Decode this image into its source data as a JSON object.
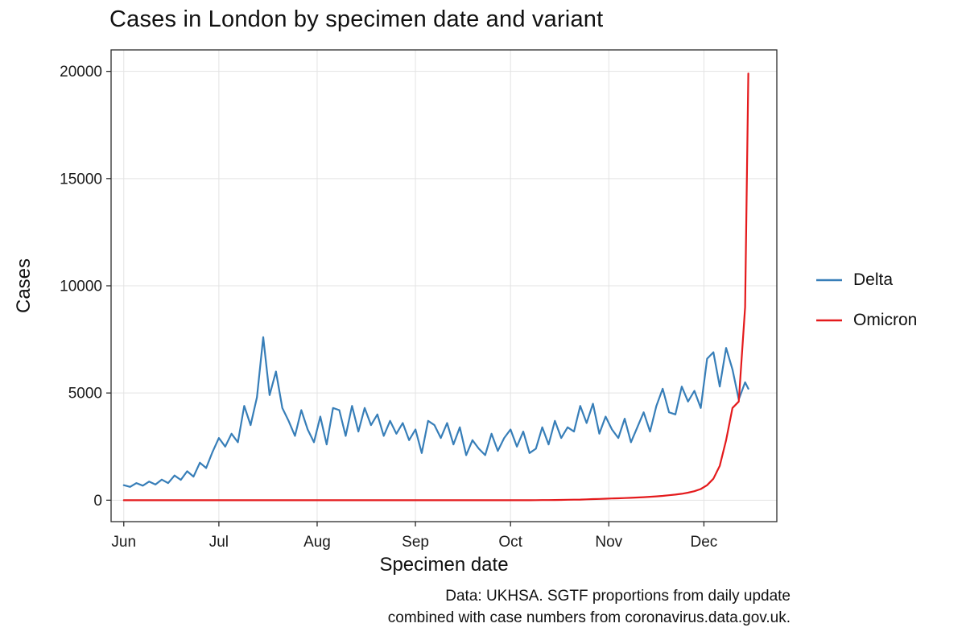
{
  "figure": {
    "caption_line1": "Data: UKHSA. SGTF proportions from daily update",
    "caption_line2": "combined with case numbers from coronavirus.data.gov.uk."
  },
  "chart_data": {
    "type": "line",
    "title": "Cases in London by specimen date and variant",
    "xlabel": "Specimen date",
    "ylabel": "Cases",
    "x_unit": "days since Jun 1",
    "xlim": [
      -4,
      206
    ],
    "ylim": [
      0,
      20000
    ],
    "y_ticks": [
      0,
      5000,
      10000,
      15000,
      20000
    ],
    "y_tick_labels": [
      "0",
      "5000",
      "10000",
      "15000",
      "20000"
    ],
    "x_tick_days": [
      0,
      30,
      61,
      92,
      122,
      153,
      183
    ],
    "x_tick_labels": [
      "Jun",
      "Jul",
      "Aug",
      "Sep",
      "Oct",
      "Nov",
      "Dec"
    ],
    "grid": true,
    "grid_color": "#e3e3e3",
    "panel_border_color": "#2b2b2b",
    "legend_position": "right",
    "days": [
      0,
      2,
      4,
      6,
      8,
      10,
      12,
      14,
      16,
      18,
      20,
      22,
      24,
      26,
      28,
      30,
      32,
      34,
      36,
      38,
      40,
      42,
      44,
      46,
      48,
      50,
      52,
      54,
      56,
      58,
      60,
      62,
      64,
      66,
      68,
      70,
      72,
      74,
      76,
      78,
      80,
      82,
      84,
      86,
      88,
      90,
      92,
      94,
      96,
      98,
      100,
      102,
      104,
      106,
      108,
      110,
      112,
      114,
      116,
      118,
      120,
      122,
      124,
      126,
      128,
      130,
      132,
      134,
      136,
      138,
      140,
      142,
      144,
      146,
      148,
      150,
      152,
      154,
      156,
      158,
      160,
      162,
      164,
      166,
      168,
      170,
      172,
      174,
      176,
      178,
      180,
      182,
      184,
      186,
      188,
      190,
      192,
      194,
      196,
      197
    ],
    "series": [
      {
        "name": "Delta",
        "color": "#377eb8",
        "values": [
          700,
          620,
          800,
          680,
          870,
          730,
          960,
          800,
          1150,
          950,
          1350,
          1100,
          1750,
          1500,
          2250,
          2900,
          2500,
          3100,
          2700,
          4400,
          3500,
          4800,
          7600,
          4900,
          6000,
          4300,
          3700,
          3000,
          4200,
          3300,
          2700,
          3900,
          2600,
          4300,
          4200,
          3000,
          4400,
          3200,
          4300,
          3500,
          4000,
          3000,
          3700,
          3100,
          3600,
          2800,
          3300,
          2200,
          3700,
          3500,
          2900,
          3600,
          2600,
          3400,
          2100,
          2800,
          2400,
          2100,
          3100,
          2300,
          2900,
          3300,
          2500,
          3200,
          2200,
          2400,
          3400,
          2600,
          3700,
          2900,
          3400,
          3200,
          4400,
          3600,
          4500,
          3100,
          3900,
          3300,
          2900,
          3800,
          2700,
          3400,
          4100,
          3200,
          4400,
          5200,
          4100,
          4000,
          5300,
          4600,
          5100,
          4300,
          6600,
          6900,
          5300,
          7100,
          6100,
          4700,
          5500,
          5200
        ]
      },
      {
        "name": "Omicron",
        "color": "#e41a1c",
        "values": [
          0,
          0,
          0,
          0,
          0,
          0,
          0,
          0,
          0,
          0,
          0,
          0,
          0,
          0,
          0,
          0,
          0,
          0,
          0,
          0,
          0,
          0,
          0,
          0,
          0,
          0,
          0,
          0,
          0,
          0,
          0,
          0,
          0,
          0,
          0,
          0,
          0,
          0,
          0,
          0,
          0,
          0,
          0,
          0,
          0,
          0,
          0,
          0,
          0,
          0,
          0,
          0,
          0,
          0,
          0,
          0,
          0,
          0,
          0,
          0,
          0,
          0,
          0,
          0,
          0,
          3,
          5,
          8,
          10,
          15,
          20,
          25,
          30,
          40,
          50,
          60,
          70,
          80,
          90,
          100,
          110,
          125,
          140,
          160,
          180,
          200,
          230,
          260,
          300,
          350,
          420,
          520,
          700,
          1000,
          1600,
          2800,
          4300,
          4600,
          9000,
          19900
        ]
      }
    ],
    "caption": "Data: UKHSA. SGTF proportions from daily update combined with case numbers from coronavirus.data.gov.uk."
  }
}
